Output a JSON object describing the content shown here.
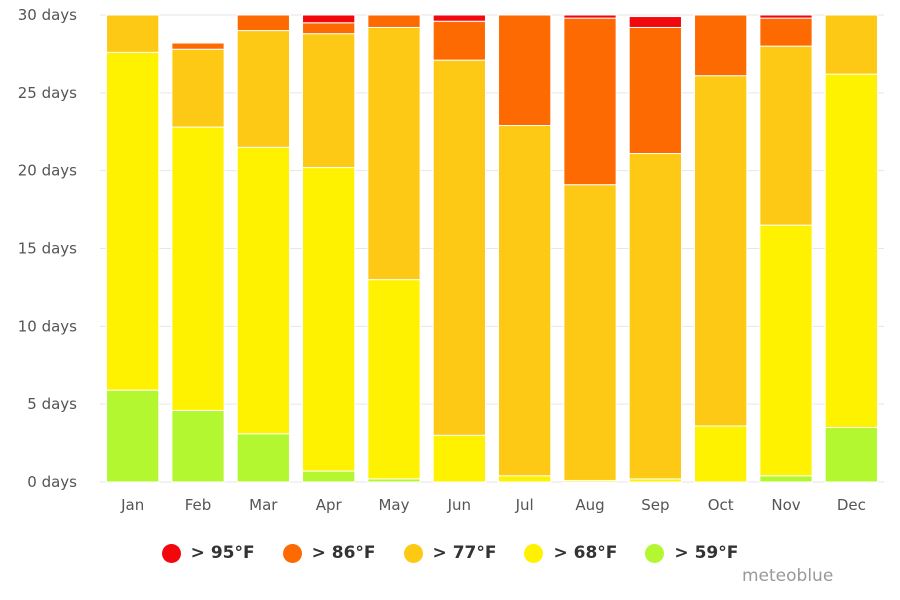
{
  "chart_data": {
    "type": "bar",
    "stacked": true,
    "title": "",
    "xlabel": "",
    "ylabel": "",
    "categories": [
      "Jan",
      "Feb",
      "Mar",
      "Apr",
      "May",
      "Jun",
      "Jul",
      "Aug",
      "Sep",
      "Oct",
      "Nov",
      "Dec"
    ],
    "ylim": [
      0,
      30
    ],
    "yticks": [
      "0 days",
      "5 days",
      "10 days",
      "15 days",
      "20 days",
      "25 days",
      "30 days"
    ],
    "grid": true,
    "legend_position": "bottom",
    "series": [
      {
        "name": "> 59°F",
        "color": "#b3f731",
        "values": [
          5.9,
          4.6,
          3.1,
          0.7,
          0.2,
          0,
          0,
          0,
          0,
          0,
          0.4,
          3.5
        ]
      },
      {
        "name": "> 68°F",
        "color": "#fff200",
        "values": [
          21.7,
          18.2,
          18.4,
          19.5,
          12.8,
          3.0,
          0.4,
          0.1,
          0.2,
          3.6,
          16.1,
          22.7
        ]
      },
      {
        "name": "> 77°F",
        "color": "#fdc914",
        "values": [
          2.4,
          5.0,
          7.5,
          8.6,
          16.2,
          24.1,
          22.5,
          19.0,
          20.9,
          22.5,
          11.5,
          3.8
        ]
      },
      {
        "name": "> 86°F",
        "color": "#fe6a02",
        "values": [
          0,
          0.4,
          1.0,
          0.7,
          0.9,
          2.5,
          7.1,
          10.7,
          8.1,
          3.9,
          1.8,
          0
        ]
      },
      {
        "name": "> 95°F",
        "color": "#f2070d",
        "values": [
          0,
          0,
          0,
          0.5,
          0,
          0.5,
          0,
          0.3,
          0.7,
          0,
          0.2,
          0
        ]
      }
    ],
    "legend_order": [
      4,
      3,
      2,
      1,
      0
    ]
  },
  "credit": "meteoblue"
}
